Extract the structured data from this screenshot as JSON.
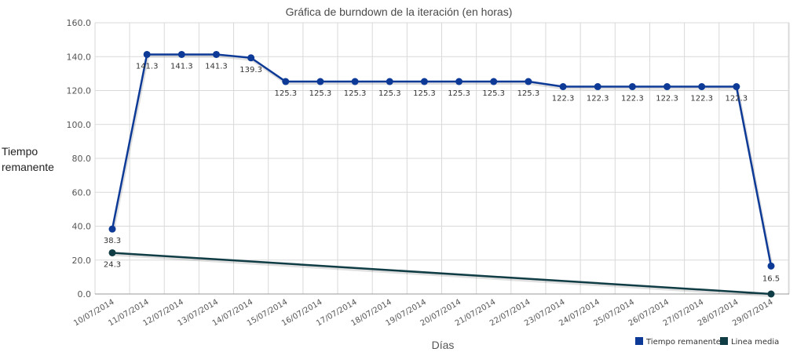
{
  "chart_data": {
    "type": "line",
    "title": "Gráfica de burndown de la iteración (en horas)",
    "xlabel": "Días",
    "ylabel": "Tiempo remanente",
    "ylabel_lines": [
      "Tiempo",
      "remanente"
    ],
    "ylim": [
      0,
      160
    ],
    "yticks": [
      "0.0",
      "20.0",
      "40.0",
      "60.0",
      "80.0",
      "100.0",
      "120.0",
      "140.0",
      "160.0"
    ],
    "categories": [
      "10/07/2014",
      "11/07/2014",
      "12/07/2014",
      "13/07/2014",
      "14/07/2014",
      "15/07/2014",
      "16/07/2014",
      "17/07/2014",
      "18/07/2014",
      "19/07/2014",
      "20/07/2014",
      "21/07/2014",
      "22/07/2014",
      "23/07/2014",
      "24/07/2014",
      "25/07/2014",
      "26/07/2014",
      "27/07/2014",
      "28/07/2014",
      "29/07/2014"
    ],
    "grid": true,
    "legend_position": "bottom-right",
    "series": [
      {
        "name": "Tiempo remanente",
        "color": "#0d3a96",
        "values": [
          38.3,
          141.3,
          141.3,
          141.3,
          139.3,
          125.3,
          125.3,
          125.3,
          125.3,
          125.3,
          125.3,
          125.3,
          125.3,
          122.3,
          122.3,
          122.3,
          122.3,
          122.3,
          122.3,
          16.5
        ],
        "labels": [
          "38.3",
          "141.3",
          "141.3",
          "141.3",
          "139.3",
          "125.3",
          "125.3",
          "125.3",
          "125.3",
          "125.3",
          "125.3",
          "125.3",
          "125.3",
          "122.3",
          "122.3",
          "122.3",
          "122.3",
          "122.3",
          "122.3",
          "16.5"
        ],
        "show_labels": true
      },
      {
        "name": "Linea media",
        "color": "#103d45",
        "values": [
          24.3,
          null,
          null,
          null,
          null,
          null,
          null,
          null,
          null,
          null,
          null,
          null,
          null,
          null,
          null,
          null,
          null,
          null,
          null,
          0
        ],
        "labels": [
          "24.3"
        ],
        "show_labels": true
      }
    ]
  }
}
